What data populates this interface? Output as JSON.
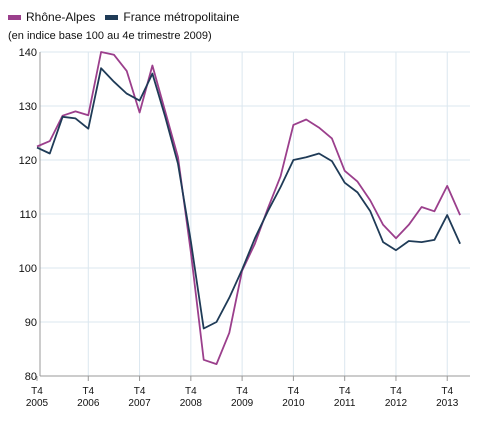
{
  "chart_data": {
    "type": "line",
    "subtitle": "(en indice base 100 au 4e trimestre 2009)",
    "x_tick_labels": [
      {
        "top": "T4",
        "bottom": "2005"
      },
      {
        "top": "T4",
        "bottom": "2006"
      },
      {
        "top": "T4",
        "bottom": "2007"
      },
      {
        "top": "T4",
        "bottom": "2008"
      },
      {
        "top": "T4",
        "bottom": "2009"
      },
      {
        "top": "T4",
        "bottom": "2010"
      },
      {
        "top": "T4",
        "bottom": "2011"
      },
      {
        "top": "T4",
        "bottom": "2012"
      },
      {
        "top": "T4",
        "bottom": "2013"
      }
    ],
    "y_ticks": [
      "80",
      "90",
      "100",
      "110",
      "120",
      "130",
      "140"
    ],
    "ylim": [
      80,
      140
    ],
    "x": [
      "2005-T4",
      "2006-T1",
      "2006-T2",
      "2006-T3",
      "2006-T4",
      "2007-T1",
      "2007-T2",
      "2007-T3",
      "2007-T4",
      "2008-T1",
      "2008-T2",
      "2008-T3",
      "2008-T4",
      "2009-T1",
      "2009-T2",
      "2009-T3",
      "2009-T4",
      "2010-T1",
      "2010-T2",
      "2010-T3",
      "2010-T4",
      "2011-T1",
      "2011-T2",
      "2011-T3",
      "2011-T4",
      "2012-T1",
      "2012-T2",
      "2012-T3",
      "2012-T4",
      "2013-T1",
      "2013-T2",
      "2013-T3",
      "2013-T4",
      "2014-T1"
    ],
    "grid": true,
    "legend_position": "top-left",
    "series": [
      {
        "name": "Rhône-Alpes",
        "color": "#9b3f8c",
        "values": [
          122.5,
          123.5,
          128.2,
          129.0,
          128.3,
          140.0,
          139.5,
          136.5,
          128.8,
          137.5,
          129.0,
          120.5,
          103.0,
          83.0,
          82.2,
          88.0,
          99.5,
          104.5,
          111.0,
          117.0,
          126.5,
          127.5,
          126.0,
          124.0,
          118.0,
          116.0,
          112.5,
          108.0,
          105.5,
          108.0,
          111.3,
          110.5,
          115.2,
          109.8
        ]
      },
      {
        "name": "France métropolitaine",
        "color": "#1f3b57",
        "values": [
          122.3,
          121.2,
          128.0,
          127.7,
          125.8,
          137.0,
          134.5,
          132.3,
          131.0,
          136.0,
          128.0,
          119.3,
          105.0,
          88.8,
          90.0,
          94.5,
          99.7,
          105.5,
          110.5,
          115.0,
          120.0,
          120.5,
          121.2,
          119.8,
          115.8,
          114.0,
          110.5,
          104.8,
          103.3,
          105.0,
          104.8,
          105.2,
          109.8,
          104.5
        ]
      }
    ]
  }
}
